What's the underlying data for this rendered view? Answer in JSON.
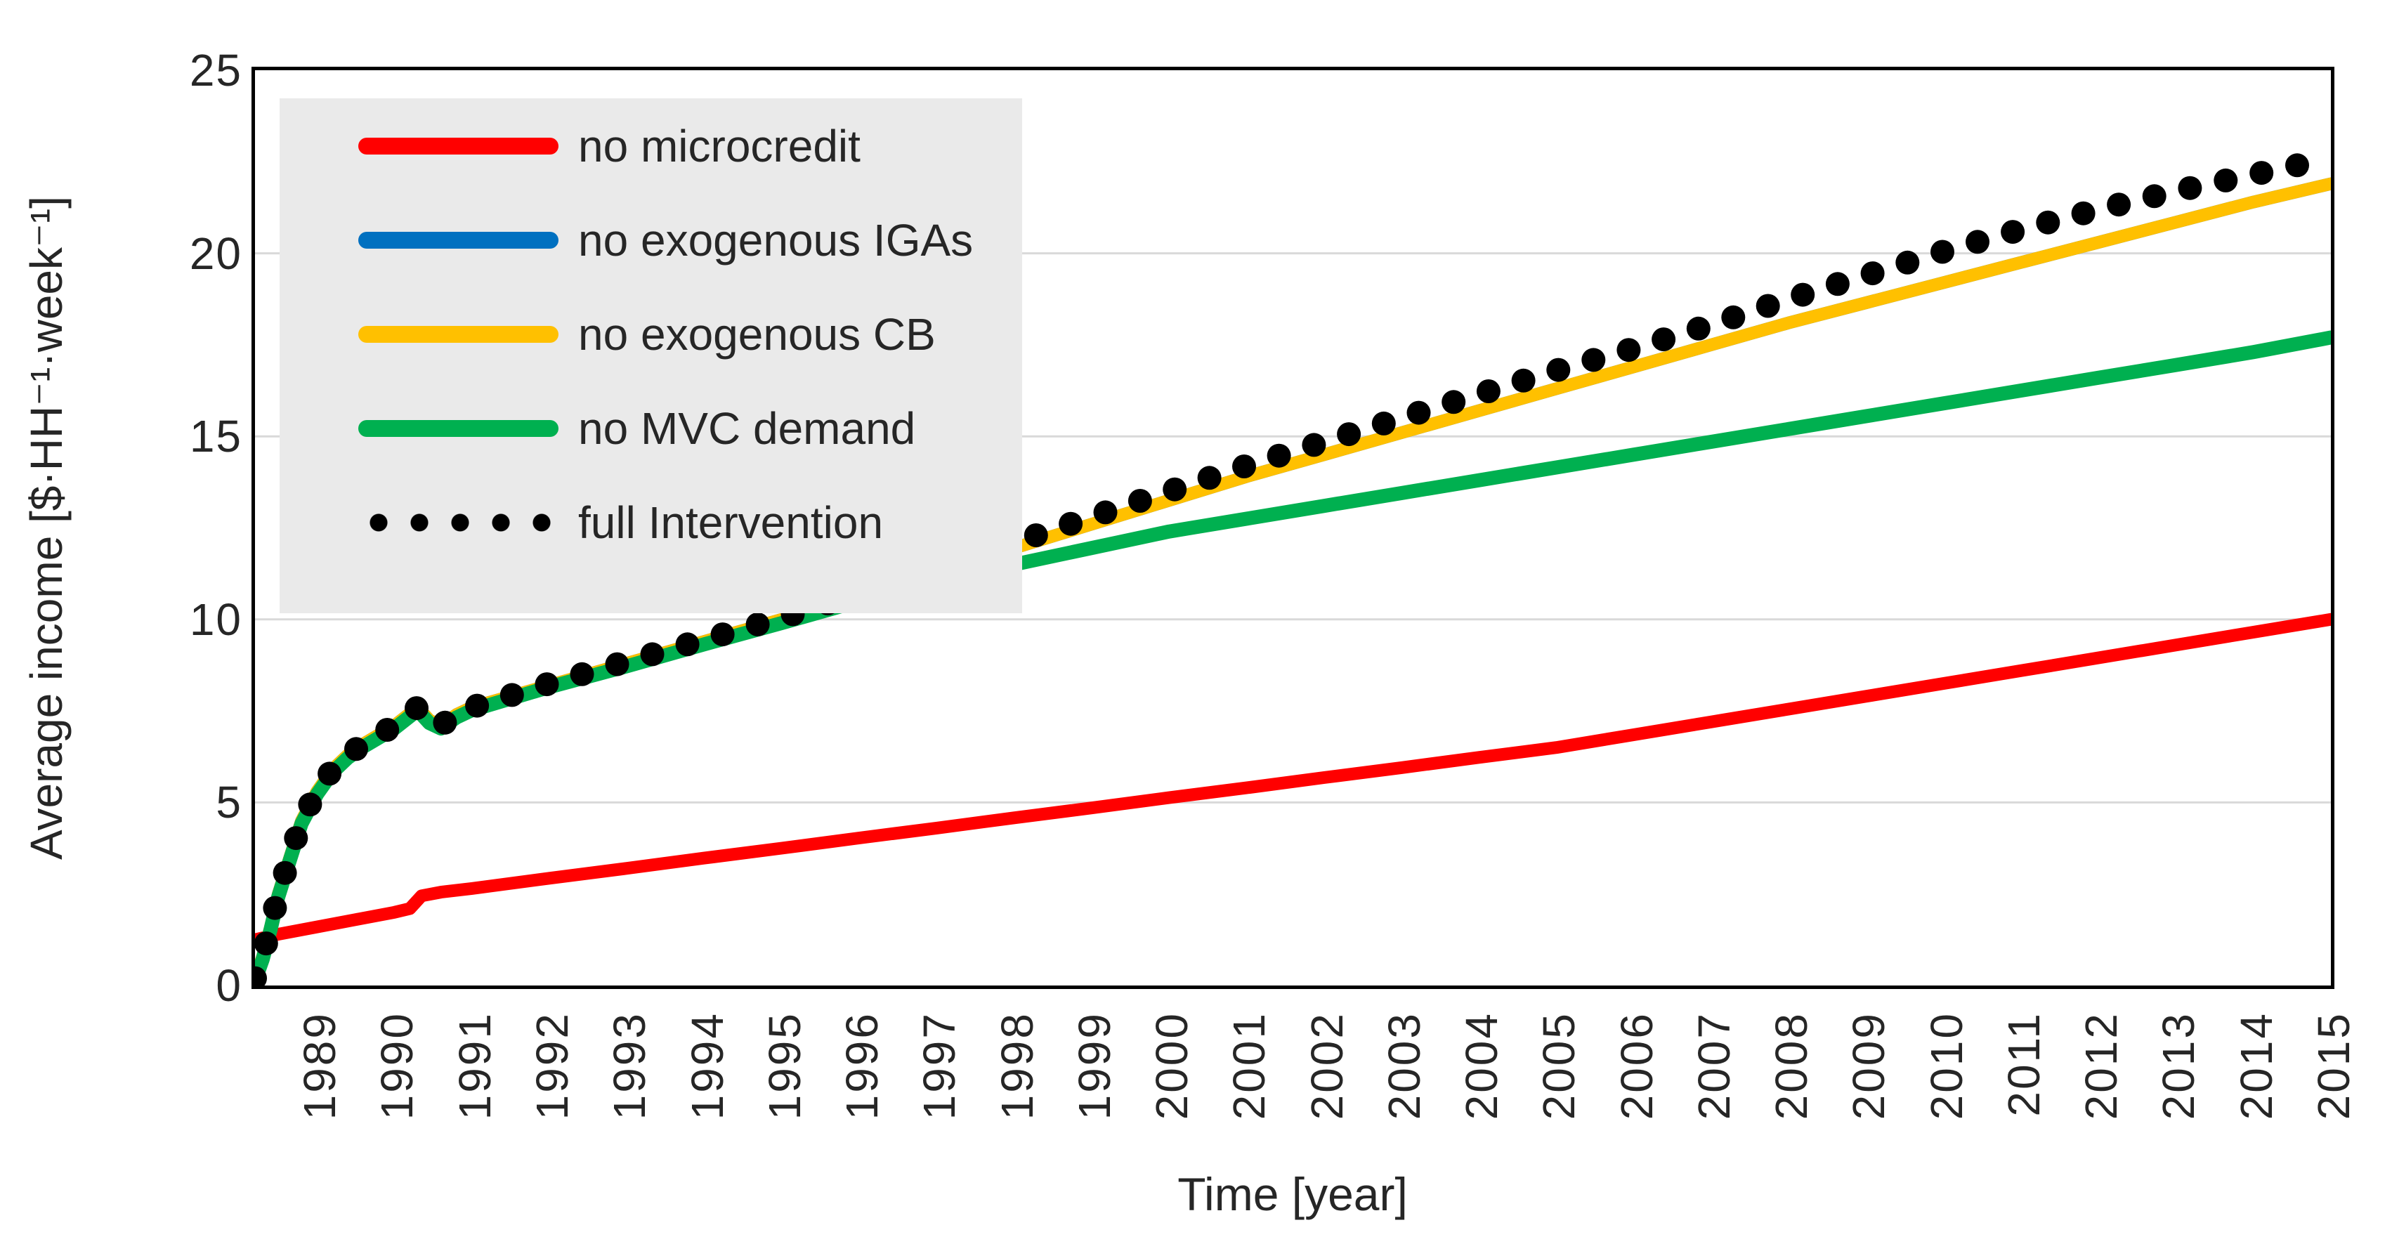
{
  "colors": {
    "red": "#FF0000",
    "blue": "#0070C0",
    "yellow": "#FFC000",
    "green": "#00B050",
    "black": "#000000",
    "gridline": "#D9D9D9",
    "legend_background": "#EAEAEA",
    "axis": "#000000",
    "text": "#262626"
  },
  "chart_data": {
    "type": "line",
    "title": "",
    "xlabel": "Time [year]",
    "ylabel": "Average income [$·HH⁻¹·week⁻¹]",
    "xlim": [
      1988.2,
      2015
    ],
    "ylim": [
      0,
      25
    ],
    "xticks": [
      1989,
      1990,
      1991,
      1992,
      1993,
      1994,
      1995,
      1996,
      1997,
      1998,
      1999,
      2000,
      2001,
      2002,
      2003,
      2004,
      2005,
      2006,
      2007,
      2008,
      2009,
      2010,
      2011,
      2012,
      2013,
      2014,
      2015
    ],
    "yticks": [
      0,
      5,
      10,
      15,
      20,
      25
    ],
    "grid": "horizontal",
    "gridline_color": "#D9D9D9",
    "legend_position": "upper-left",
    "legend_background": "#EAEAEA",
    "series": [
      {
        "name": "no microcredit",
        "color": "#FF0000",
        "style": "line",
        "width": 18,
        "x": [
          1988.2,
          1988.5,
          1989,
          1989.5,
          1990,
          1990.2,
          1990.35,
          1990.6,
          1991,
          1992,
          1993,
          1994,
          1995,
          1996,
          1997,
          1998,
          1999,
          2000,
          2001,
          2002,
          2003,
          2004,
          2005,
          2006,
          2007,
          2008,
          2009,
          2010,
          2011,
          2012,
          2013,
          2014,
          2015
        ],
        "y": [
          1.25,
          1.4,
          1.6,
          1.8,
          2.0,
          2.1,
          2.45,
          2.55,
          2.65,
          2.93,
          3.2,
          3.48,
          3.75,
          4.03,
          4.3,
          4.58,
          4.85,
          5.13,
          5.4,
          5.68,
          5.95,
          6.23,
          6.5,
          6.85,
          7.2,
          7.55,
          7.9,
          8.25,
          8.6,
          8.95,
          9.3,
          9.65,
          10.0
        ]
      },
      {
        "name": "no exogenous IGAs",
        "color": "#0070C0",
        "style": "line",
        "width": 18,
        "note": "completely hidden behind the 'no exogenous CB' curve (identical values)",
        "x": [
          1988.2,
          1988.3,
          1988.4,
          1988.5,
          1988.65,
          1988.8,
          1989,
          1989.2,
          1989.4,
          1989.6,
          1989.8,
          1990,
          1990.15,
          1990.3,
          1990.45,
          1990.6,
          1990.8,
          1991,
          1992,
          1993,
          1994,
          1995,
          1996,
          1997,
          1998,
          1999,
          2000,
          2001,
          2002,
          2003,
          2004,
          2005,
          2006,
          2007,
          2008,
          2009,
          2010,
          2011,
          2012,
          2013,
          2014,
          2015
        ],
        "y": [
          0.2,
          0.8,
          1.6,
          2.5,
          3.5,
          4.5,
          5.3,
          5.9,
          6.3,
          6.6,
          6.85,
          7.1,
          7.35,
          7.6,
          7.25,
          7.1,
          7.4,
          7.6,
          8.2,
          8.8,
          9.4,
          10.0,
          10.65,
          11.3,
          11.95,
          12.6,
          13.25,
          13.9,
          14.5,
          15.1,
          15.7,
          16.3,
          16.9,
          17.5,
          18.1,
          18.65,
          19.2,
          19.75,
          20.3,
          20.85,
          21.4,
          21.9
        ]
      },
      {
        "name": "no exogenous CB",
        "color": "#FFC000",
        "style": "line",
        "width": 18,
        "x": [
          1988.2,
          1988.3,
          1988.4,
          1988.5,
          1988.65,
          1988.8,
          1989,
          1989.2,
          1989.4,
          1989.6,
          1989.8,
          1990,
          1990.15,
          1990.3,
          1990.45,
          1990.6,
          1990.8,
          1991,
          1992,
          1993,
          1994,
          1995,
          1996,
          1997,
          1998,
          1999,
          2000,
          2001,
          2002,
          2003,
          2004,
          2005,
          2006,
          2007,
          2008,
          2009,
          2010,
          2011,
          2012,
          2013,
          2014,
          2015
        ],
        "y": [
          0.2,
          0.8,
          1.6,
          2.5,
          3.5,
          4.5,
          5.3,
          5.9,
          6.3,
          6.6,
          6.85,
          7.1,
          7.35,
          7.6,
          7.25,
          7.1,
          7.4,
          7.6,
          8.2,
          8.8,
          9.4,
          10.0,
          10.65,
          11.3,
          11.95,
          12.6,
          13.25,
          13.9,
          14.5,
          15.1,
          15.7,
          16.3,
          16.9,
          17.5,
          18.1,
          18.65,
          19.2,
          19.75,
          20.3,
          20.85,
          21.4,
          21.9
        ]
      },
      {
        "name": "no MVC demand",
        "color": "#00B050",
        "style": "line",
        "width": 20,
        "x": [
          1988.2,
          1988.3,
          1988.4,
          1988.5,
          1988.65,
          1988.8,
          1989,
          1989.2,
          1989.4,
          1989.6,
          1989.8,
          1990,
          1990.15,
          1990.3,
          1990.45,
          1990.6,
          1990.8,
          1991,
          1992,
          1993,
          1994,
          1995,
          1996,
          1997,
          1998,
          1999,
          2000,
          2001,
          2002,
          2003,
          2004,
          2005,
          2006,
          2007,
          2008,
          2009,
          2010,
          2011,
          2012,
          2013,
          2014,
          2015
        ],
        "y": [
          0.12,
          0.72,
          1.52,
          2.42,
          3.42,
          4.42,
          5.22,
          5.82,
          6.22,
          6.52,
          6.77,
          7.02,
          7.27,
          7.52,
          7.17,
          7.02,
          7.32,
          7.52,
          8.15,
          8.72,
          9.32,
          9.9,
          10.5,
          11.0,
          11.5,
          11.95,
          12.4,
          12.75,
          13.1,
          13.45,
          13.8,
          14.15,
          14.5,
          14.85,
          15.2,
          15.55,
          15.9,
          16.25,
          16.6,
          16.95,
          17.3,
          17.7
        ]
      },
      {
        "name": "full Intervention",
        "color": "#000000",
        "style": "dots",
        "dot_radius": 17,
        "dot_spacing": 52,
        "x": [
          1988.2,
          1988.3,
          1988.4,
          1988.5,
          1988.65,
          1988.8,
          1989,
          1989.2,
          1989.4,
          1989.6,
          1989.8,
          1990,
          1990.15,
          1990.3,
          1990.45,
          1990.6,
          1990.8,
          1991,
          1992,
          1993,
          1994,
          1995,
          1996,
          1997,
          1998,
          1999,
          2000,
          2001,
          2002,
          2003,
          2004,
          2005,
          2006,
          2007,
          2008,
          2009,
          2010,
          2011,
          2012,
          2013,
          2014,
          2015
        ],
        "y": [
          0.2,
          0.8,
          1.6,
          2.5,
          3.5,
          4.5,
          5.3,
          5.9,
          6.3,
          6.6,
          6.85,
          7.1,
          7.35,
          7.6,
          7.25,
          7.1,
          7.4,
          7.6,
          8.25,
          8.85,
          9.45,
          10.05,
          10.7,
          11.4,
          12.1,
          12.8,
          13.5,
          14.2,
          14.85,
          15.5,
          16.15,
          16.8,
          17.4,
          18.05,
          18.75,
          19.4,
          20.05,
          20.65,
          21.2,
          21.7,
          22.15,
          22.6
        ]
      }
    ]
  }
}
